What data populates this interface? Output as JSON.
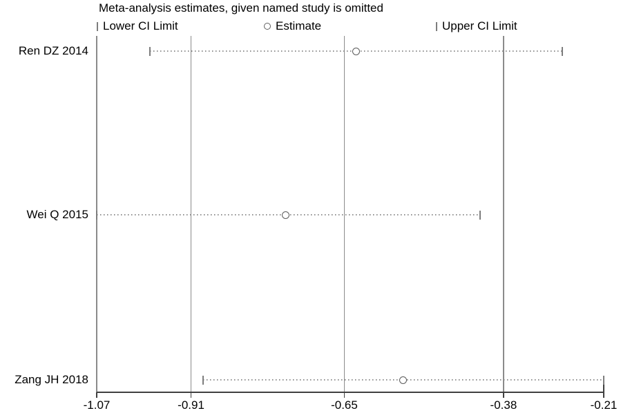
{
  "chart_data": {
    "type": "scatter",
    "subtype": "leave-one-out-sensitivity-forest",
    "title": "Meta-analysis estimates, given named study is omitted",
    "legend": {
      "lower_label": "Lower CI Limit",
      "estimate_label": "Estimate",
      "upper_label": "Upper CI Limit"
    },
    "xlim": [
      -1.07,
      -0.21
    ],
    "x_tick_values": [
      -1.07,
      -0.91,
      -0.65,
      -0.38,
      -0.21
    ],
    "x_tick_labels": [
      "-1.07",
      "-0.91",
      "-0.65",
      "-0.38",
      "-0.21"
    ],
    "vertical_lines": [
      -1.07,
      -0.91,
      -0.65,
      -0.38
    ],
    "overall": {
      "lower_ci": -0.91,
      "estimate": -0.65,
      "upper_ci": -0.38
    },
    "studies": [
      {
        "label": "Ren DZ 2014",
        "lower": -0.98,
        "estimate": -0.63,
        "upper": -0.28
      },
      {
        "label": "Wei Q 2015",
        "lower": -1.07,
        "estimate": -0.75,
        "upper": -0.42
      },
      {
        "label": "Zang JH 2018",
        "lower": -0.89,
        "estimate": -0.55,
        "upper": -0.21
      }
    ],
    "grid": false,
    "legend_position": "top",
    "colors": {
      "text": "#000000",
      "reference_line": "#8a8a8a",
      "ci_line": "#8f8f8f",
      "marker_stroke": "#5a5a5a",
      "axis": "#3f3f3f",
      "background": "#ffffff"
    }
  }
}
